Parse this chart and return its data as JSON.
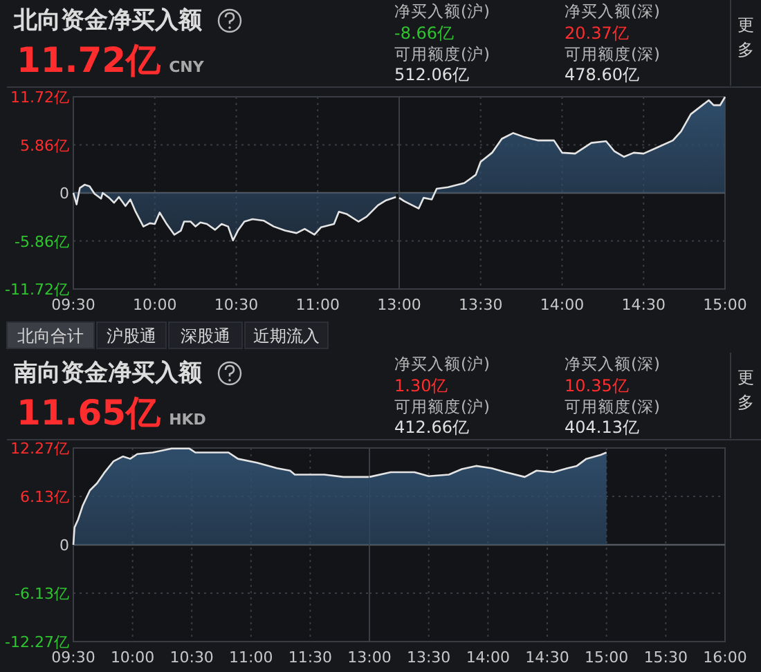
{
  "chart_data": [
    {
      "type": "area",
      "title": "北向资金净买入额",
      "annotations": [
        "11.72亿",
        "CNY",
        "净买入额(沪)",
        "-8.66亿",
        "净买入额(深)",
        "20.37亿",
        "可用额度(沪)",
        "512.06亿",
        "可用额度(深)",
        "478.60亿",
        "更多",
        "北向合计",
        "沪股通",
        "深股通",
        "近期流入"
      ],
      "x": [
        9.5,
        9.52,
        9.54,
        9.57,
        9.6,
        9.63,
        9.67,
        9.68,
        9.72,
        9.75,
        9.78,
        9.82,
        9.85,
        9.88,
        9.93,
        9.97,
        10,
        10.03,
        10.07,
        10.12,
        10.16,
        10.18,
        10.22,
        10.25,
        10.28,
        10.32,
        10.37,
        10.41,
        10.45,
        10.48,
        10.51,
        10.55,
        10.6,
        10.67,
        10.73,
        10.8,
        10.87,
        10.92,
        10.98,
        11.02,
        11.1,
        11.13,
        11.18,
        11.25,
        11.3,
        11.37,
        11.42,
        11.48
      ],
      "series": [
        {
          "color": "#2f4d6b",
          "values": [
            0,
            -1.4,
            0.6,
            1.0,
            0.8,
            -0.1,
            -0.7,
            0,
            -0.6,
            -1.2,
            -0.5,
            -1.6,
            -0.8,
            -2.2,
            -4.1,
            -3.7,
            -3.8,
            -2.4,
            -3.7,
            -5.1,
            -4.6,
            -3.5,
            -3.5,
            -4.1,
            -3.6,
            -3.8,
            -4.5,
            -3.8,
            -4.1,
            -5.8,
            -4.6,
            -3.5,
            -3.2,
            -3.4,
            -4.1,
            -4.6,
            -4.9,
            -4.4,
            -5.1,
            -4.2,
            -3.8,
            -2.3,
            -2.6,
            -3.5,
            -2.9,
            -1.5,
            -0.9,
            -0.5
          ]
        }
      ],
      "xlim": [
        9.5,
        11.5
      ],
      "xticks": [
        {
          "value": 9.5,
          "label": "09:30"
        },
        {
          "value": 10,
          "label": "10:00"
        },
        {
          "value": 10.5,
          "label": "10:30"
        },
        {
          "value": 11,
          "label": "11:00"
        }
      ],
      "ylim": [
        -11.72,
        11.72
      ],
      "yticks": [
        {
          "value": 11.72,
          "label": "11.72亿"
        },
        {
          "value": 5.86,
          "label": "5.86亿"
        },
        0,
        {
          "value": -5.86,
          "label": "-5.86亿"
        },
        {
          "value": -11.72,
          "label": "-11.72亿"
        }
      ],
      "grid": true
    },
    {
      "type": "area",
      "x": [
        13,
        13.03,
        13.12,
        13.15,
        13.2,
        13.23,
        13.3,
        13.4,
        13.47,
        13.5,
        13.57,
        13.63,
        13.7,
        13.77,
        13.85,
        13.95,
        14,
        14.08,
        14.18,
        14.27,
        14.32,
        14.38,
        14.44,
        14.5,
        14.58,
        14.68,
        14.73,
        14.79,
        14.9,
        14.93,
        14.97,
        15
      ],
      "series": [
        {
          "color": "#2f4d6b",
          "values": [
            -0.6,
            -1.0,
            -1.9,
            -0.6,
            -0.8,
            0.5,
            0.7,
            1.2,
            2.2,
            3.8,
            4.9,
            6.6,
            7.3,
            6.8,
            6.4,
            6.4,
            4.9,
            4.8,
            6.1,
            6.3,
            5.1,
            4.4,
            4.9,
            4.8,
            5.5,
            6.4,
            7.5,
            9.6,
            11.3,
            10.7,
            10.7,
            11.7
          ]
        }
      ],
      "xlim": [
        13,
        15
      ],
      "xticks": [
        {
          "value": 13,
          "label": "13:00"
        },
        {
          "value": 13.5,
          "label": "13:30"
        },
        {
          "value": 14,
          "label": "14:00"
        },
        {
          "value": 14.5,
          "label": "14:30"
        },
        {
          "value": 15,
          "label": "15:00"
        }
      ],
      "ylim": [
        -11.72,
        11.72
      ],
      "yticks": [
        11.72,
        5.86,
        0,
        -5.86,
        -11.72
      ],
      "tick_labels": "x",
      "grid": true
    },
    {
      "type": "area",
      "title": "南向资金净买入额",
      "annotations": [
        "11.65亿",
        "HKD",
        "净买入额(沪)",
        "1.30亿",
        "净买入额(深)",
        "10.35亿",
        "可用额度(沪)",
        "412.66亿",
        "可用额度(深)",
        "404.13亿",
        "更多"
      ],
      "x": [
        9.5,
        9.51,
        9.54,
        9.58,
        9.64,
        9.7,
        9.76,
        9.84,
        9.92,
        9.98,
        10.04,
        10.17,
        10.33,
        10.48,
        10.53,
        10.65,
        10.81,
        10.89,
        11.05,
        11.22,
        11.33,
        11.37,
        11.62,
        11.78,
        12
      ],
      "series": [
        {
          "color": "#2f4d6b",
          "values": [
            0,
            2.2,
            3.2,
            5.0,
            6.9,
            7.8,
            9.1,
            10.6,
            11.2,
            10.9,
            11.5,
            11.7,
            12.2,
            12.2,
            11.7,
            11.7,
            11.7,
            10.9,
            10.4,
            9.7,
            9.4,
            8.9,
            8.9,
            8.6,
            8.6
          ]
        }
      ],
      "xlim": [
        9.5,
        12
      ],
      "xticks": [
        {
          "value": 9.5,
          "label": "09:30"
        },
        {
          "value": 10,
          "label": "10:00"
        },
        {
          "value": 10.5,
          "label": "10:30"
        },
        {
          "value": 11,
          "label": "11:00"
        },
        {
          "value": 11.5,
          "label": "11:30"
        }
      ],
      "ylim": [
        -12.27,
        12.27
      ],
      "yticks": [
        {
          "value": 12.27,
          "label": "12.27亿"
        },
        {
          "value": 6.13,
          "label": "6.13亿"
        },
        0,
        {
          "value": -6.13,
          "label": "-6.13亿"
        },
        {
          "value": -12.27,
          "label": "-12.27亿"
        }
      ],
      "grid": true
    },
    {
      "type": "area",
      "x": [
        13,
        13.18,
        13.38,
        13.5,
        13.67,
        13.78,
        13.9,
        14.03,
        14.15,
        14.31,
        14.41,
        14.55,
        14.67,
        14.75,
        14.83,
        14.95,
        15
      ],
      "series": [
        {
          "color": "#2f4d6b",
          "values": [
            8.6,
            9.2,
            9.2,
            8.7,
            8.9,
            9.6,
            10.0,
            9.7,
            9.2,
            8.6,
            9.4,
            9.2,
            9.7,
            10.0,
            10.9,
            11.4,
            11.7
          ]
        }
      ],
      "xlim": [
        13,
        16
      ],
      "xticks": [
        {
          "value": 13,
          "label": "13:00"
        },
        {
          "value": 13.5,
          "label": "13:30"
        },
        {
          "value": 14,
          "label": "14:00"
        },
        {
          "value": 14.5,
          "label": "14:30"
        },
        {
          "value": 15,
          "label": "15:00"
        },
        {
          "value": 15.5,
          "label": "15:30"
        },
        {
          "value": 16,
          "label": "16:00"
        }
      ],
      "ylim": [
        -12.27,
        12.27
      ],
      "yticks": [
        12.27,
        6.13,
        0,
        -6.13,
        -12.27
      ],
      "tick_labels": "x",
      "grid": true
    }
  ]
}
